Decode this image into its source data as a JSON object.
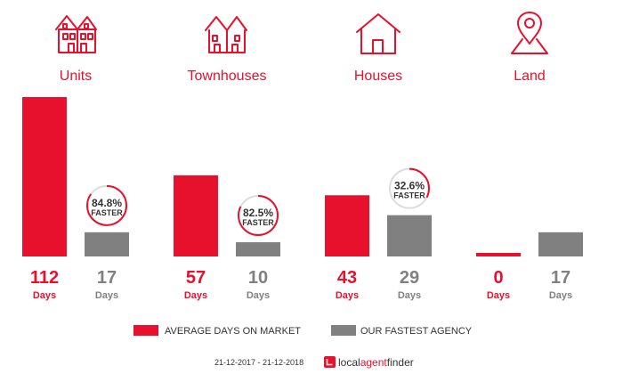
{
  "colors": {
    "accent": "#e8112d",
    "agency": "#808080",
    "ring_bg": "#dddddd",
    "text_dark": "#333333"
  },
  "chart_data": {
    "type": "bar",
    "categories": [
      "Units",
      "Townhouses",
      "Houses",
      "Land"
    ],
    "category_icons": [
      "units-icon",
      "townhouses-icon",
      "house-icon",
      "map-pin-icon"
    ],
    "series": [
      {
        "name": "AVERAGE DAYS ON MARKET",
        "values": [
          112,
          57,
          43,
          0
        ]
      },
      {
        "name": "OUR FASTEST AGENCY",
        "values": [
          17,
          10,
          29,
          17
        ]
      }
    ],
    "value_unit": "Days",
    "faster": [
      {
        "percent": "84.8%",
        "label": "FASTER",
        "ratio": 0.848
      },
      {
        "percent": "82.5%",
        "label": "FASTER",
        "ratio": 0.825
      },
      {
        "percent": "32.6%",
        "label": "FASTER",
        "ratio": 0.326
      },
      null
    ],
    "ylim": [
      0,
      112
    ],
    "legend_position": "bottom",
    "grid": false
  },
  "footer": {
    "date_range": "21-12-2017 - 21-12-2018",
    "brand_parts": [
      "local",
      "agent",
      "finder"
    ]
  }
}
